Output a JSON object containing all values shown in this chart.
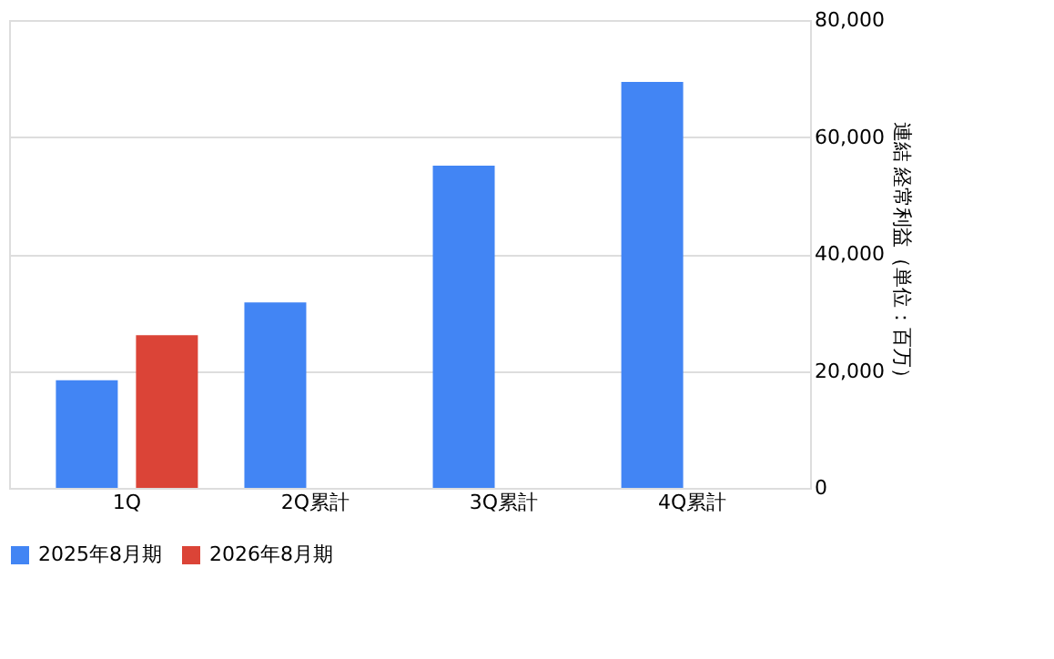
{
  "chart_data": {
    "type": "bar",
    "categories": [
      "1Q",
      "2Q累計",
      "3Q累計",
      "4Q累計"
    ],
    "series": [
      {
        "name": "2025年8月期",
        "color": "#4285f4",
        "values": [
          18400,
          31700,
          55100,
          69400
        ]
      },
      {
        "name": "2026年8月期",
        "color": "#db4437",
        "values": [
          26100,
          null,
          null,
          null
        ]
      }
    ],
    "ylabel": "連結 経常利益（単位：百万）",
    "ylim": [
      0,
      80000
    ],
    "yticks": [
      0,
      {
        "value": 20000,
        "label": "20,000"
      },
      {
        "value": 40000,
        "label": "40,000"
      },
      {
        "value": 60000,
        "label": "60,000"
      },
      {
        "value": 80000,
        "label": "80,000"
      }
    ],
    "grid": "y",
    "legend": "bottom"
  }
}
